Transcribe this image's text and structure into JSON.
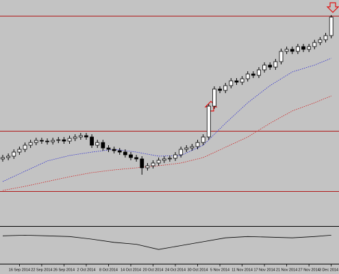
{
  "chart_data": {
    "type": "candlestick",
    "categories": [
      null,
      null,
      null,
      "16 Sep 2014",
      null,
      null,
      null,
      "22 Sep 2014",
      null,
      null,
      null,
      "26 Sep 2014",
      null,
      null,
      null,
      "2 Oct 2014",
      null,
      null,
      null,
      "8 Oct 2014",
      null,
      null,
      null,
      "14 Oct 2014",
      null,
      null,
      null,
      "20 Oct 2014",
      null,
      null,
      null,
      "24 Oct 2014",
      null,
      null,
      null,
      "30 Oct 2014",
      null,
      null,
      null,
      "5 Nov 2014",
      null,
      null,
      null,
      "11 Nov 2014",
      null,
      null,
      null,
      "17 Nov 2014",
      null,
      null,
      null,
      "21 Nov 2014",
      null,
      null,
      null,
      "27 Nov 2014",
      null,
      null,
      null,
      "3 Dec 2014"
    ],
    "open": [
      98,
      100,
      102,
      108,
      112,
      118,
      122,
      125,
      124,
      123,
      125,
      126,
      124,
      128,
      130,
      132,
      130,
      118,
      122,
      114,
      112,
      110,
      108,
      104,
      100,
      98,
      85,
      88,
      92,
      96,
      98,
      99,
      104,
      112,
      114,
      116,
      122,
      130,
      175,
      200,
      198,
      205,
      212,
      210,
      215,
      222,
      220,
      228,
      235,
      232,
      240,
      255,
      258,
      255,
      262,
      258,
      262,
      268,
      272,
      278
    ],
    "high": [
      104,
      106,
      112,
      116,
      122,
      126,
      129,
      129,
      128,
      129,
      130,
      130,
      132,
      134,
      136,
      136,
      134,
      126,
      126,
      118,
      116,
      114,
      112,
      108,
      104,
      102,
      92,
      96,
      100,
      102,
      103,
      108,
      116,
      118,
      120,
      126,
      134,
      178,
      204,
      204,
      209,
      216,
      216,
      219,
      226,
      226,
      232,
      239,
      239,
      244,
      259,
      262,
      262,
      266,
      266,
      266,
      272,
      276,
      282,
      308
    ],
    "low": [
      94,
      96,
      98,
      104,
      108,
      114,
      118,
      120,
      119,
      119,
      121,
      120,
      120,
      124,
      126,
      126,
      114,
      114,
      110,
      108,
      106,
      104,
      100,
      96,
      94,
      75,
      81,
      84,
      88,
      92,
      94,
      95,
      100,
      108,
      110,
      112,
      118,
      126,
      171,
      194,
      194,
      201,
      206,
      206,
      211,
      216,
      216,
      224,
      228,
      228,
      236,
      251,
      251,
      251,
      254,
      254,
      258,
      264,
      268,
      274
    ],
    "close": [
      100,
      102,
      108,
      112,
      118,
      122,
      125,
      124,
      123,
      125,
      126,
      124,
      128,
      130,
      132,
      130,
      118,
      122,
      114,
      112,
      110,
      108,
      104,
      100,
      98,
      85,
      88,
      92,
      96,
      98,
      99,
      104,
      112,
      114,
      116,
      122,
      130,
      175,
      200,
      198,
      205,
      212,
      210,
      215,
      222,
      220,
      228,
      235,
      232,
      240,
      255,
      258,
      255,
      262,
      258,
      262,
      268,
      272,
      278,
      305
    ],
    "ylim": [
      0,
      330
    ],
    "hlines": [
      307,
      139,
      51
    ],
    "hline_color": "#b01818",
    "up_color": "#ffffff",
    "down_color": "#000000",
    "series": [
      {
        "color": "#2a2ad0",
        "x": [
          0,
          4,
          8,
          12,
          16,
          20,
          24,
          28,
          32,
          36,
          40,
          44,
          48,
          52,
          56,
          59
        ],
        "values": [
          65,
          80,
          95,
          103,
          108,
          112,
          108,
          102,
          103,
          118,
          150,
          180,
          205,
          225,
          235,
          245
        ]
      },
      {
        "color": "#d02020",
        "x": [
          0,
          4,
          8,
          12,
          16,
          20,
          24,
          28,
          32,
          36,
          40,
          44,
          48,
          52,
          56,
          59
        ],
        "values": [
          52,
          58,
          65,
          72,
          78,
          82,
          85,
          88,
          92,
          100,
          115,
          130,
          150,
          168,
          180,
          190
        ]
      }
    ],
    "indicator": {
      "color": "#000000",
      "x": [
        0,
        4,
        8,
        12,
        16,
        20,
        24,
        28,
        32,
        36,
        40,
        44,
        48,
        52,
        56,
        59
      ],
      "values": [
        43,
        44,
        43,
        42,
        38,
        33,
        30,
        22,
        28,
        34,
        40,
        42,
        41,
        40,
        42,
        44
      ],
      "ylim": [
        0,
        55
      ]
    }
  }
}
